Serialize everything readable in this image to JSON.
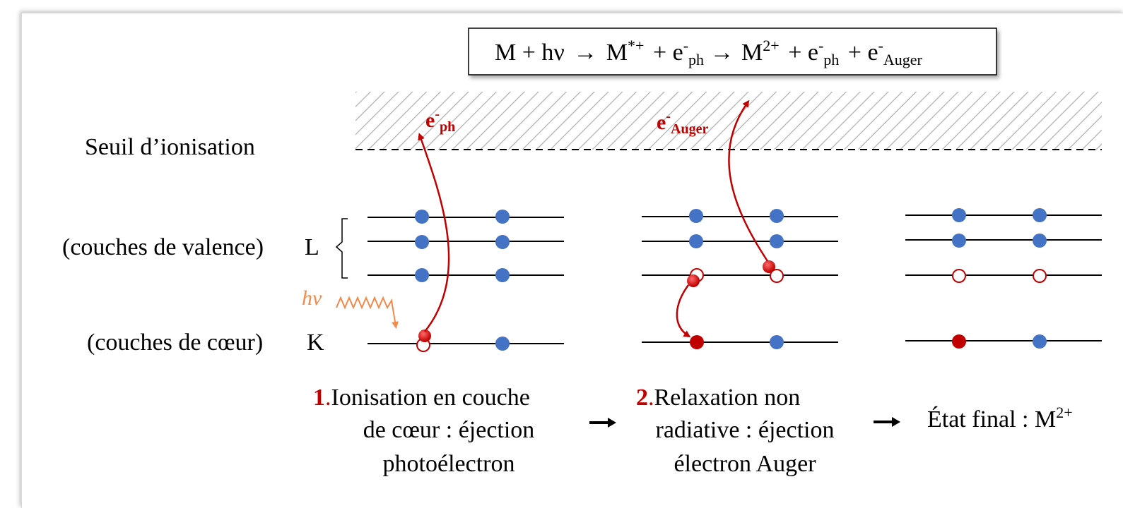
{
  "equation": {
    "m1": "M + hν",
    "arrow1": "→",
    "m2": "M",
    "m2_sup": "*+",
    "plus1": "+ e",
    "e1_sup": "-",
    "e1_sub": "ph",
    "arrow2": "→",
    "m3": "M",
    "m3_sup": "2+",
    "plus2": "+ e",
    "e2_sup": "-",
    "e2_sub": "ph",
    "plus3": "+ e",
    "e3_sup": "-",
    "e3_sub": "Auger"
  },
  "levels": {
    "threshold": "Seuil  d’ionisation",
    "valence": "(couches de valence)",
    "valence_letter": "L",
    "core": "(couches de cœur)",
    "core_letter": "K",
    "photon": "hν"
  },
  "electron_labels": {
    "photoelectron": {
      "base": "e",
      "sup": "-",
      "sub": "ph"
    },
    "auger": {
      "base": "e",
      "sup": "-",
      "sub": "Auger"
    }
  },
  "steps": [
    {
      "number": "1",
      "dot": ".",
      "line1": "Ionisation en couche",
      "line2": "de cœur : éjection",
      "line3": "photoélectron"
    },
    {
      "number": "2",
      "dot": ".",
      "line1": "Relaxation  non",
      "line2": "radiative : éjection",
      "line3": "électron Auger"
    },
    {
      "text": "État final : M",
      "sup": "2+"
    }
  ],
  "colors": {
    "electron": "#4472c4",
    "hole": "#c00000",
    "label_red": "#c00000",
    "photon": "#f4894a",
    "line": "#000000"
  }
}
